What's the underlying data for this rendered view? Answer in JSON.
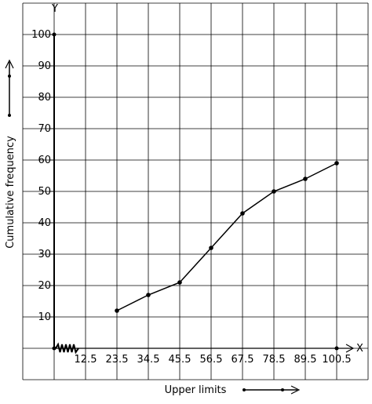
{
  "chart_data": {
    "type": "line",
    "title": "",
    "xlabel": "Upper limits",
    "ylabel": "Cumulative frequency",
    "x_axis_letter": "X",
    "y_axis_letter": "Y",
    "x_tick_labels": [
      "12.5",
      "23.5",
      "34.5",
      "45.5",
      "56.5",
      "67.5",
      "78.5",
      "89.5",
      "100.5"
    ],
    "y_tick_labels": [
      "10",
      "20",
      "30",
      "40",
      "50",
      "60",
      "70",
      "80",
      "90",
      "100"
    ],
    "ylim": [
      0,
      110
    ],
    "grid": true,
    "series": [
      {
        "x": [
          "23.5",
          "34.5",
          "45.5",
          "56.5",
          "67.5",
          "78.5",
          "89.5",
          "100.5"
        ],
        "values": [
          12,
          17,
          21,
          32,
          43,
          50,
          54,
          59
        ]
      }
    ]
  },
  "colors": {
    "line": "#000000",
    "grid": "#000000",
    "background": "#ffffff"
  },
  "icons": {
    "axis_break": "zigzag-axis-break-icon",
    "y_direction": "up-arrow-icon",
    "x_direction": "right-arrow-icon"
  }
}
